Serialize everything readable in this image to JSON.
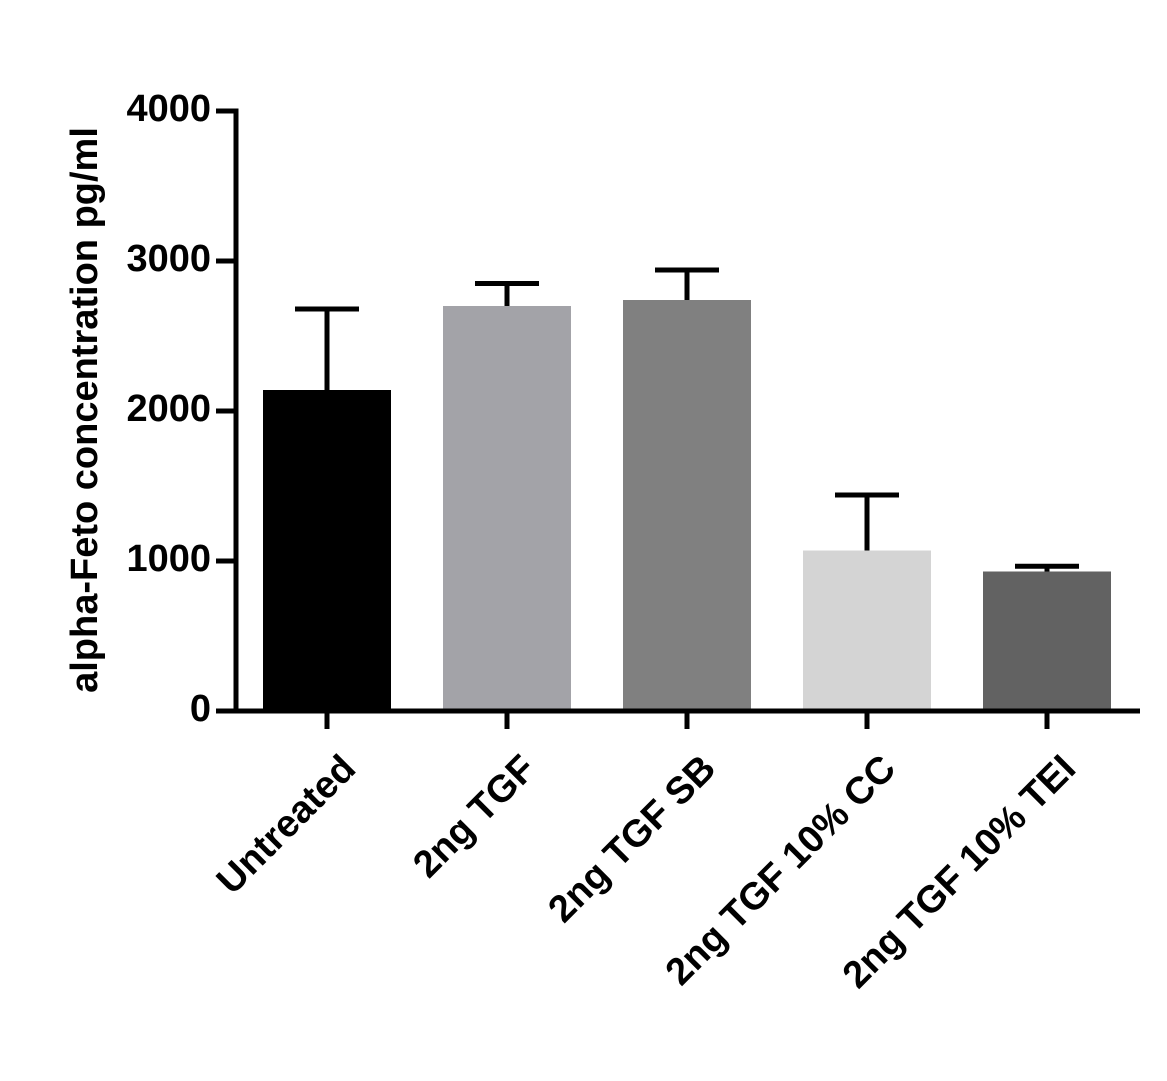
{
  "chart_data": {
    "type": "bar",
    "title": "",
    "xlabel": "",
    "ylabel": "alpha-Feto concentration pg/ml",
    "categories": [
      "Untreated",
      "2ng TGF",
      "2ng TGF SB",
      "2ng TGF 10% CC",
      "2ng TGF 10% TEI"
    ],
    "values": [
      2140,
      2700,
      2740,
      1070,
      930
    ],
    "error_plus": [
      540,
      150,
      200,
      370,
      35
    ],
    "bar_colors": [
      "#000000",
      "#a3a3a8",
      "#808080",
      "#d4d4d4",
      "#626262"
    ],
    "ylim": [
      0,
      4000
    ],
    "yticks": [
      0,
      1000,
      2000,
      3000,
      4000
    ],
    "ytick_labels": [
      "0",
      "1000",
      "2000",
      "3000",
      "4000"
    ],
    "grid": false,
    "legend": "none"
  }
}
